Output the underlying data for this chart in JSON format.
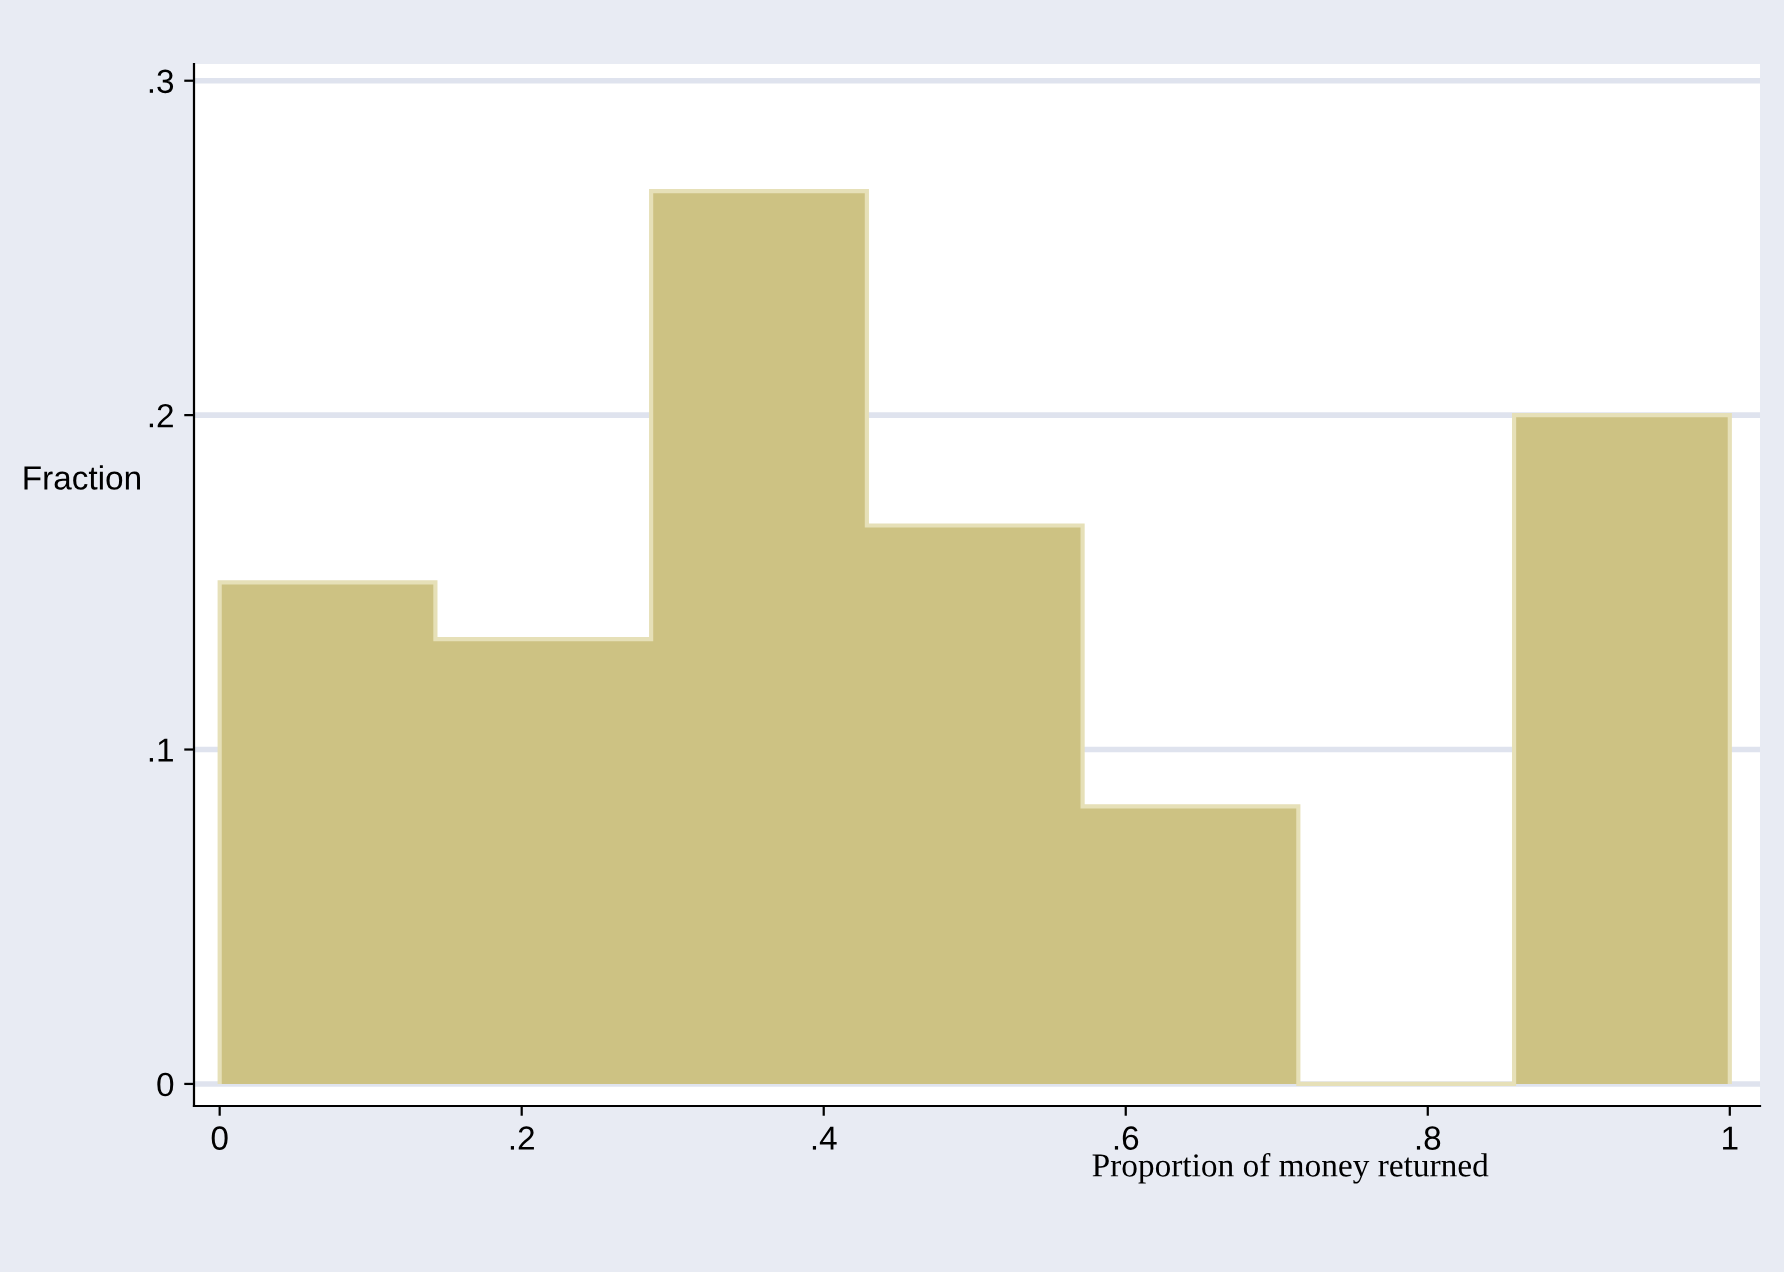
{
  "chart_data": {
    "type": "histogram",
    "xlabel": "Proportion of money returned",
    "ylabel": "Fraction",
    "bins": [
      0,
      0.142857,
      0.285714,
      0.428571,
      0.571429,
      0.714286,
      0.857143,
      1
    ],
    "values": [
      0.15,
      0.133,
      0.267,
      0.167,
      0.083,
      0,
      0.2
    ],
    "color": "#cdc283",
    "xlim": [
      -0.017,
      1.02
    ],
    "ylim": [
      -0.0066,
      0.305
    ],
    "xticks": [
      0,
      {
        "value": 0.2,
        "label": ".2"
      },
      {
        "value": 0.4,
        "label": ".4"
      },
      {
        "value": 0.6,
        "label": ".6"
      },
      {
        "value": 0.8,
        "label": ".8"
      },
      1
    ],
    "yticks": [
      0,
      {
        "value": 0.1,
        "label": ".1"
      },
      {
        "value": 0.2,
        "label": ".2"
      },
      {
        "value": 0.3,
        "label": ".3"
      }
    ],
    "grid": "y"
  }
}
